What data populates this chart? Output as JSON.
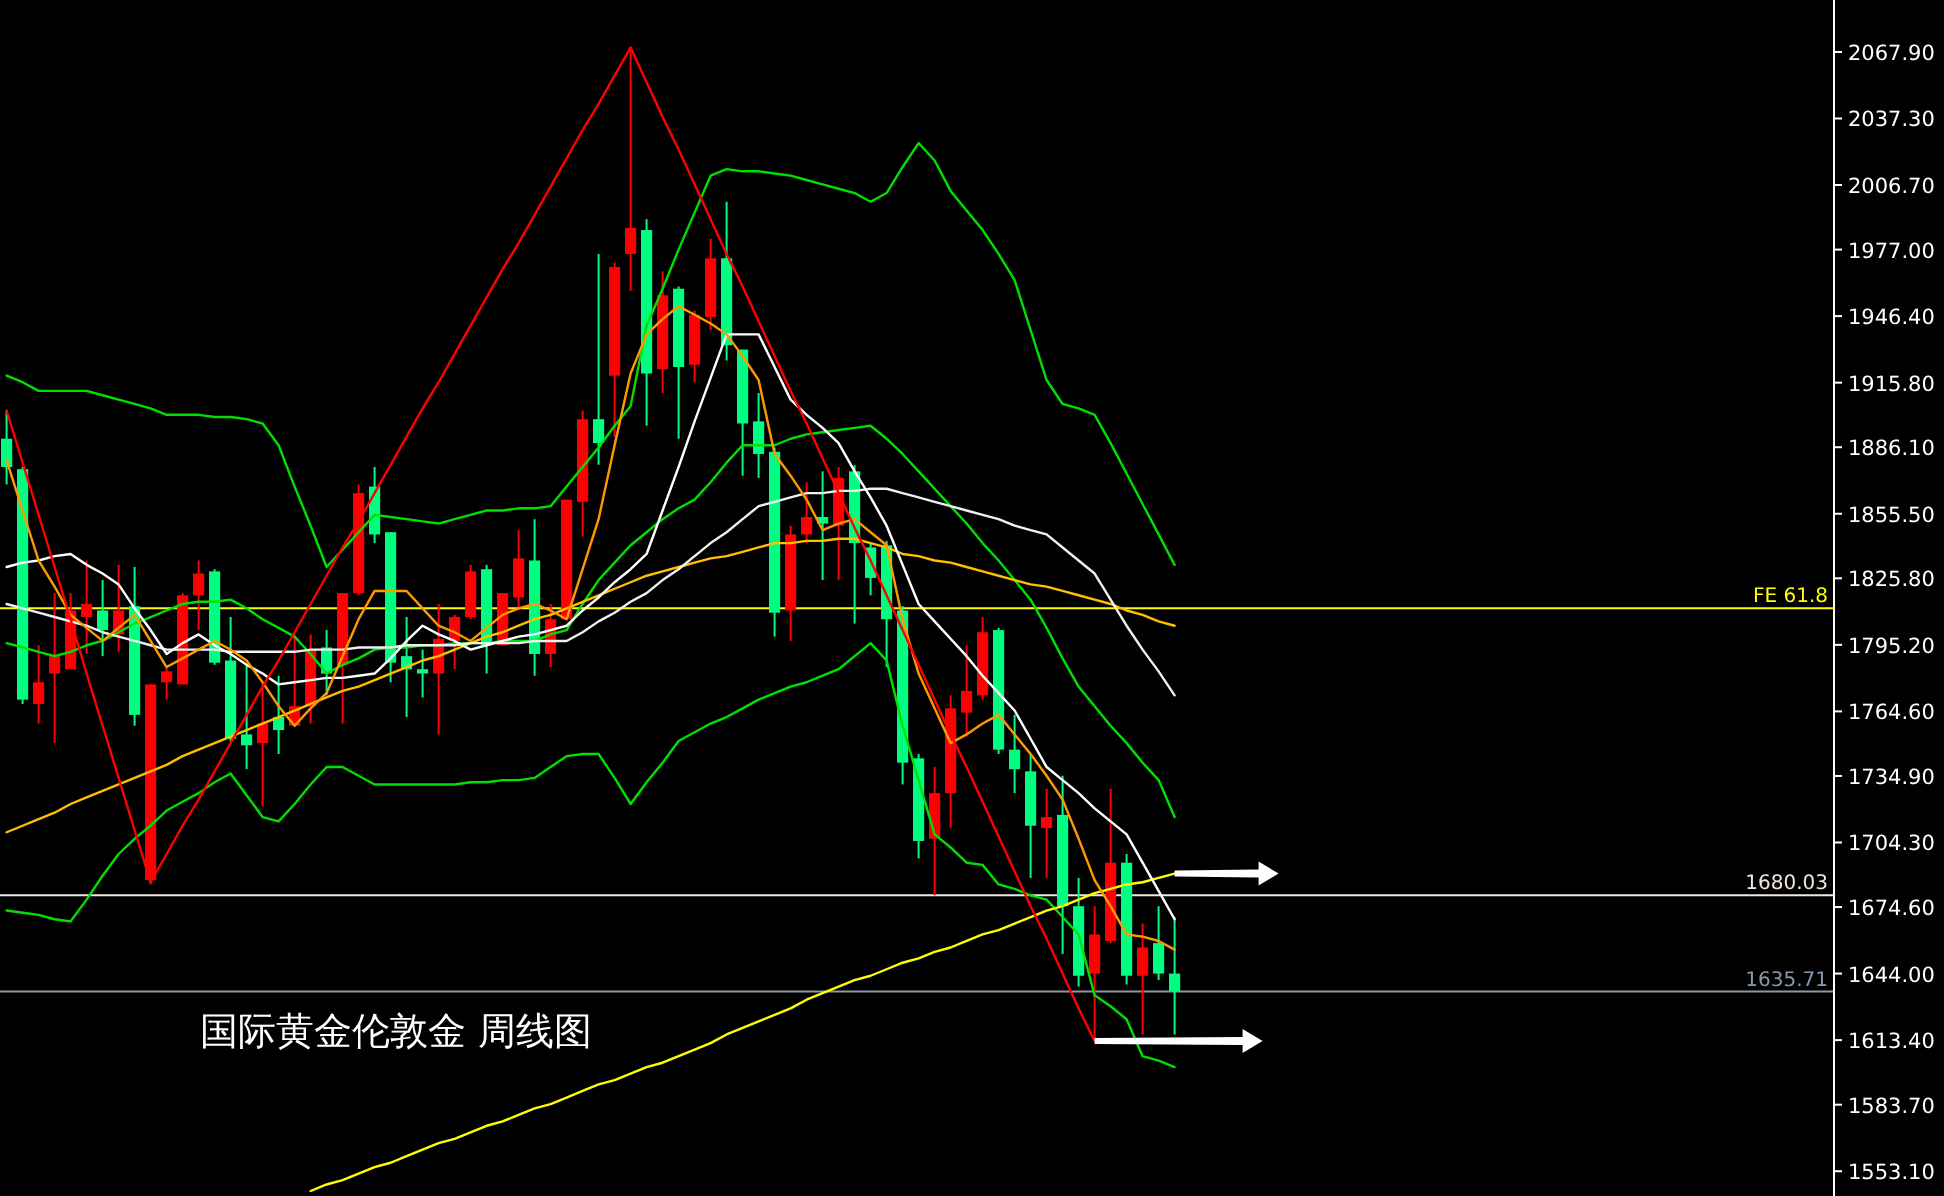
{
  "chart_data": {
    "type": "candlestick",
    "title": "国际黄金伦敦金 周线图",
    "categories": [
      null,
      null,
      null,
      null,
      null,
      null,
      null,
      null,
      null,
      null,
      null,
      null,
      null,
      null,
      null,
      null,
      null,
      null,
      null,
      null,
      null,
      null,
      null,
      null,
      null,
      null,
      null,
      null,
      null,
      null,
      null,
      null,
      null,
      null,
      null,
      null,
      null,
      null,
      null,
      null,
      null,
      null,
      null,
      null,
      null,
      null,
      null,
      null,
      null,
      null,
      null,
      null,
      null,
      null,
      null,
      null,
      null,
      null,
      null,
      null,
      null,
      null,
      null,
      null,
      null,
      null,
      null,
      null,
      null,
      null,
      null,
      null,
      null,
      null
    ],
    "ohlc": [
      [
        1890,
        1903,
        1869,
        1877
      ],
      [
        1876,
        1877,
        1768,
        1770
      ],
      [
        1768,
        1795,
        1759,
        1778
      ],
      [
        1782,
        1819,
        1750,
        1790
      ],
      [
        1784,
        1819,
        1784,
        1811
      ],
      [
        1808,
        1834,
        1791,
        1814
      ],
      [
        1811,
        1825,
        1790,
        1802
      ],
      [
        1800,
        1832,
        1792,
        1811
      ],
      [
        1813,
        1831,
        1758,
        1763
      ],
      [
        1687,
        1777,
        1685,
        1777
      ],
      [
        1778,
        1785,
        1770,
        1783
      ],
      [
        1777,
        1819,
        1777,
        1818
      ],
      [
        1818,
        1834,
        1802,
        1828
      ],
      [
        1829,
        1830,
        1786,
        1787
      ],
      [
        1788,
        1808,
        1751,
        1752
      ],
      [
        1754,
        1786,
        1738,
        1749
      ],
      [
        1750,
        1777,
        1721,
        1759
      ],
      [
        1762,
        1781,
        1745,
        1756
      ],
      [
        1758,
        1800,
        1758,
        1767
      ],
      [
        1767,
        1800,
        1759,
        1793
      ],
      [
        1794,
        1802,
        1772,
        1782
      ],
      [
        1786,
        1819,
        1759,
        1819
      ],
      [
        1819,
        1869,
        1818,
        1865
      ],
      [
        1868,
        1877,
        1842,
        1846
      ],
      [
        1847,
        1847,
        1778,
        1787
      ],
      [
        1790,
        1808,
        1762,
        1784
      ],
      [
        1784,
        1793,
        1771,
        1782
      ],
      [
        1782,
        1814,
        1754,
        1798
      ],
      [
        1797,
        1809,
        1784,
        1808
      ],
      [
        1808,
        1832,
        1807,
        1829
      ],
      [
        1830,
        1832,
        1782,
        1795
      ],
      [
        1795,
        1819,
        1795,
        1819
      ],
      [
        1817,
        1848,
        1812,
        1835
      ],
      [
        1834,
        1853,
        1781,
        1791
      ],
      [
        1791,
        1814,
        1785,
        1807
      ],
      [
        1807,
        1862,
        1807,
        1862
      ],
      [
        1861,
        1903,
        1845,
        1899
      ],
      [
        1899,
        1975,
        1878,
        1888
      ],
      [
        1919,
        1971,
        1891,
        1969
      ],
      [
        1975,
        2070,
        1958,
        1987
      ],
      [
        1986,
        1991,
        1896,
        1920
      ],
      [
        1922,
        1967,
        1911,
        1956
      ],
      [
        1959,
        1960,
        1890,
        1923
      ],
      [
        1924,
        1949,
        1916,
        1947
      ],
      [
        1946,
        1982,
        1940,
        1973
      ],
      [
        1973,
        1999,
        1926,
        1933
      ],
      [
        1931,
        1931,
        1873,
        1897
      ],
      [
        1898,
        1911,
        1872,
        1883
      ],
      [
        1884,
        1886,
        1799,
        1810
      ],
      [
        1811,
        1850,
        1797,
        1846
      ],
      [
        1846,
        1870,
        1842,
        1854
      ],
      [
        1854,
        1875,
        1825,
        1851
      ],
      [
        1850,
        1877,
        1825,
        1872
      ],
      [
        1875,
        1878,
        1805,
        1842
      ],
      [
        1840,
        1842,
        1818,
        1826
      ],
      [
        1841,
        1843,
        1785,
        1807
      ],
      [
        1811,
        1813,
        1731,
        1741
      ],
      [
        1743,
        1745,
        1697,
        1705
      ],
      [
        1706,
        1739,
        1680,
        1727
      ],
      [
        1727,
        1772,
        1711,
        1766
      ],
      [
        1764,
        1795,
        1753,
        1774
      ],
      [
        1772,
        1808,
        1770,
        1801
      ],
      [
        1802,
        1803,
        1745,
        1747
      ],
      [
        1747,
        1763,
        1727,
        1738
      ],
      [
        1737,
        1745,
        1688,
        1712
      ],
      [
        1711,
        1729,
        1688,
        1716
      ],
      [
        1717,
        1735,
        1653,
        1675
      ],
      [
        1675,
        1688,
        1638,
        1643
      ],
      [
        1644,
        1675,
        1613,
        1662
      ],
      [
        1659,
        1729,
        1658,
        1695
      ],
      [
        1695,
        1699,
        1639,
        1643
      ],
      [
        1643,
        1667,
        1616,
        1656
      ],
      [
        1658,
        1675,
        1641,
        1644
      ],
      [
        1644,
        1670,
        1616,
        1636
      ]
    ],
    "colors": [
      "#00ff80",
      "#00ff80",
      "#ff0000",
      "#ff0000",
      "#ff0000",
      "#ff0000",
      "#00ff80",
      "#ff0000",
      "#00ff80",
      "#ff0000",
      "#ff0000",
      "#ff0000",
      "#ff0000",
      "#00ff80",
      "#00ff80",
      "#00ff80",
      "#ff0000",
      "#00ff80",
      "#ff0000",
      "#ff0000",
      "#00ff80",
      "#ff0000",
      "#ff0000",
      "#00ff80",
      "#00ff80",
      "#00ff80",
      "#00ff80",
      "#ff0000",
      "#ff0000",
      "#ff0000",
      "#00ff80",
      "#ff0000",
      "#ff0000",
      "#00ff80",
      "#ff0000",
      "#ff0000",
      "#ff0000",
      "#00ff80",
      "#ff0000",
      "#ff0000",
      "#00ff80",
      "#ff0000",
      "#00ff80",
      "#ff0000",
      "#ff0000",
      "#00ff80",
      "#00ff80",
      "#00ff80",
      "#00ff80",
      "#ff0000",
      "#ff0000",
      "#00ff80",
      "#ff0000",
      "#00ff80",
      "#00ff80",
      "#00ff80",
      "#00ff80",
      "#00ff80",
      "#ff0000",
      "#ff0000",
      "#ff0000",
      "#ff0000",
      "#00ff80",
      "#00ff80",
      "#00ff80",
      "#ff0000",
      "#00ff80",
      "#00ff80",
      "#ff0000",
      "#ff0000",
      "#00ff80",
      "#ff0000",
      "#00ff80",
      "#00ff80"
    ],
    "series": [
      {
        "type": "line",
        "color": "#00e000",
        "values": [
          1919,
          1916,
          1912,
          1912,
          1912,
          1912,
          1910,
          1908,
          1906,
          1904,
          1901,
          1901,
          1901,
          1900,
          1900,
          1899,
          1897,
          1887,
          1868,
          1850,
          1831,
          1839,
          1847,
          1855,
          1854,
          1853,
          1852,
          1851,
          1853,
          1855,
          1857,
          1857,
          1858,
          1858,
          1859,
          1868,
          1877,
          1886,
          1896,
          1905,
          1942,
          1959,
          1977,
          1994,
          2011,
          2014,
          2013,
          2013,
          2012,
          2011,
          2009,
          2007,
          2005,
          2003,
          1999,
          2003,
          2015,
          2026,
          2018,
          2004,
          1995,
          1986,
          1975,
          1963,
          1940,
          1917,
          1906,
          1904,
          1901,
          1888,
          1874,
          1860,
          1846,
          1832
        ]
      },
      {
        "type": "line",
        "color": "#00e000",
        "values": [
          1796,
          1794,
          1792,
          1790,
          1792,
          1795,
          1797,
          1801,
          1805,
          1808,
          1811,
          1814,
          1815,
          1815,
          1816,
          1812,
          1807,
          1803,
          1799,
          1791,
          1782,
          1786,
          1789,
          1793,
          1794,
          1794,
          1795,
          1795,
          1796,
          1796,
          1796,
          1797,
          1797,
          1797,
          1800,
          1802,
          1814,
          1825,
          1833,
          1841,
          1847,
          1853,
          1858,
          1862,
          1870,
          1879,
          1887,
          1887,
          1887,
          1890,
          1892,
          1893,
          1894,
          1895,
          1896,
          1890,
          1883,
          1875,
          1867,
          1859,
          1851,
          1842,
          1834,
          1825,
          1816,
          1803,
          1789,
          1776,
          1767,
          1758,
          1750,
          1741,
          1733,
          1716
        ]
      },
      {
        "type": "line",
        "color": "#00e000",
        "values": [
          1673,
          1672,
          1671,
          1669,
          1668,
          1678,
          1689,
          1699,
          1706,
          1712,
          1719,
          1723,
          1727,
          1732,
          1736,
          1726,
          1716,
          1714,
          1722,
          1731,
          1739,
          1739,
          1735,
          1731,
          1731,
          1731,
          1731,
          1731,
          1731,
          1732,
          1732,
          1733,
          1733,
          1734,
          1739,
          1744,
          1745,
          1745,
          1734,
          1722,
          1732,
          1741,
          1751,
          1755,
          1759,
          1762,
          1766,
          1770,
          1773,
          1776,
          1778,
          1781,
          1784,
          1790,
          1796,
          1788,
          1758,
          1733,
          1708,
          1702,
          1695,
          1694,
          1685,
          1683,
          1680,
          1678,
          1670,
          1662,
          1634,
          1629,
          1623,
          1606,
          1604,
          1601
        ]
      },
      {
        "type": "line",
        "color": "#ffff00",
        "values": [
          null,
          null,
          null,
          null,
          null,
          null,
          null,
          null,
          null,
          null,
          null,
          null,
          null,
          null,
          null,
          null,
          null,
          null,
          null,
          1544,
          1547,
          1549,
          1552,
          1555,
          1557,
          1560,
          1563,
          1566,
          1568,
          1571,
          1574,
          1576,
          1579,
          1582,
          1584,
          1587,
          1590,
          1593,
          1595,
          1598,
          1601,
          1603,
          1606,
          1609,
          1612,
          1616,
          1619,
          1622,
          1625,
          1628,
          1632,
          1635,
          1638,
          1641,
          1643,
          1646,
          1649,
          1651,
          1654,
          1656,
          1659,
          1662,
          1664,
          1667,
          1670,
          1673,
          1675,
          1678,
          1681,
          1683,
          1685,
          1686,
          1688,
          1690
        ]
      },
      {
        "type": "line",
        "color": "#ffc000",
        "values": [
          1709,
          1712,
          1715,
          1718,
          1722,
          1725,
          1728,
          1731,
          1734,
          1737,
          1740,
          1744,
          1747,
          1750,
          1753,
          1756,
          1759,
          1762,
          1765,
          1768,
          1771,
          1774,
          1776,
          1779,
          1782,
          1785,
          1788,
          1790,
          1793,
          1796,
          1799,
          1801,
          1804,
          1807,
          1809,
          1812,
          1815,
          1818,
          1821,
          1824,
          1827,
          1829,
          1831,
          1833,
          1835,
          1836,
          1838,
          1840,
          1842,
          1842,
          1843,
          1843,
          1844,
          1844,
          1842,
          1840,
          1837,
          1836,
          1834,
          1833,
          1831,
          1829,
          1827,
          1825,
          1823,
          1822,
          1820,
          1818,
          1816,
          1814,
          1811,
          1809,
          1806,
          1804
        ]
      },
      {
        "type": "line",
        "color": "#f0f0f0",
        "values": [
          1814,
          1812,
          1810,
          1808,
          1806,
          1804,
          1801,
          1799,
          1797,
          1795,
          1793,
          1793,
          1793,
          1793,
          1792,
          1792,
          1792,
          1792,
          1792,
          1793,
          1793,
          1793,
          1794,
          1794,
          1794,
          1795,
          1795,
          1795,
          1795,
          1796,
          1796,
          1796,
          1796,
          1797,
          1797,
          1797,
          1801,
          1806,
          1810,
          1815,
          1819,
          1825,
          1830,
          1836,
          1842,
          1847,
          1853,
          1859,
          1861,
          1863,
          1865,
          1865,
          1866,
          1866,
          1867,
          1867,
          1865,
          1863,
          1861,
          1859,
          1857,
          1855,
          1853,
          1850,
          1848,
          1846,
          1840,
          1834,
          1828,
          1816,
          1804,
          1793,
          1783,
          1772
        ]
      },
      {
        "type": "line",
        "color": "#ffffff",
        "values": [
          1831,
          1833,
          1834,
          1836,
          1837,
          1832,
          1828,
          1823,
          1812,
          1802,
          1791,
          1796,
          1800,
          1795,
          1791,
          1786,
          1782,
          1777,
          1778,
          1779,
          1780,
          1780,
          1781,
          1782,
          1789,
          1797,
          1804,
          1800,
          1797,
          1793,
          1795,
          1797,
          1799,
          1800,
          1802,
          1804,
          1811,
          1817,
          1824,
          1830,
          1837,
          1857,
          1877,
          1898,
          1918,
          1938,
          1938,
          1938,
          1923,
          1908,
          1901,
          1895,
          1888,
          1875,
          1863,
          1850,
          1832,
          1814,
          1806,
          1798,
          1790,
          1781,
          1773,
          1765,
          1752,
          1739,
          1733,
          1727,
          1720,
          1714,
          1708,
          1695,
          1682,
          1669
        ]
      },
      {
        "type": "line",
        "color": "#ff9900",
        "values": [
          1880,
          1857,
          1834,
          1822,
          1809,
          1803,
          1797,
          1803,
          1809,
          1797,
          1785,
          1789,
          1793,
          1797,
          1793,
          1788,
          1778,
          1767,
          1758,
          1766,
          1773,
          1790,
          1807,
          1820,
          1820,
          1820,
          1812,
          1804,
          1801,
          1797,
          1803,
          1809,
          1812,
          1814,
          1811,
          1807,
          1830,
          1853,
          1887,
          1920,
          1938,
          1945,
          1951,
          1947,
          1943,
          1938,
          1928,
          1917,
          1883,
          1873,
          1862,
          1848,
          1851,
          1853,
          1847,
          1841,
          1807,
          1782,
          1766,
          1750,
          1754,
          1759,
          1763,
          1754,
          1745,
          1735,
          1724,
          1706,
          1687,
          1675,
          1662,
          1661,
          1659,
          1655
        ]
      },
      {
        "type": "line",
        "color": "#ff0000",
        "values": [
          1903,
          1879,
          1855,
          1831,
          1807,
          1782,
          1758,
          1734,
          1710,
          1686,
          1699,
          1712,
          1724,
          1737,
          1750,
          1763,
          1776,
          1788,
          1801,
          1814,
          1827,
          1840,
          1852,
          1865,
          1878,
          1891,
          1904,
          1916,
          1929,
          1942,
          1955,
          1968,
          1980,
          1993,
          2006,
          2019,
          2032,
          2044,
          2057,
          2070,
          2054,
          2038,
          2023,
          2007,
          1991,
          1975,
          1960,
          1944,
          1928,
          1912,
          1897,
          1881,
          1865,
          1849,
          1834,
          1818,
          1802,
          1786,
          1770,
          1754,
          1739,
          1723,
          1707,
          1691,
          1675,
          1660,
          1644,
          1628,
          1613,
          null,
          null,
          null,
          null,
          null
        ]
      }
    ],
    "ylim": [
      1541.7,
      2091.8
    ],
    "yticks": [
      {
        "value": 2067.9,
        "label": "2067.90"
      },
      {
        "value": 2037.3,
        "label": "2037.30"
      },
      {
        "value": 2006.7,
        "label": "2006.70"
      },
      {
        "value": 1977.0,
        "label": "1977.00"
      },
      {
        "value": 1946.4,
        "label": "1946.40"
      },
      {
        "value": 1915.8,
        "label": "1915.80"
      },
      {
        "value": 1886.1,
        "label": "1886.10"
      },
      {
        "value": 1855.5,
        "label": "1855.50"
      },
      {
        "value": 1825.8,
        "label": "1825.80"
      },
      {
        "value": 1795.2,
        "label": "1795.20"
      },
      {
        "value": 1764.6,
        "label": "1764.60"
      },
      {
        "value": 1734.9,
        "label": "1734.90"
      },
      {
        "value": 1704.3,
        "label": "1704.30"
      },
      {
        "value": 1674.6,
        "label": "1674.60"
      },
      {
        "value": 1644.0,
        "label": "1644.00"
      },
      {
        "value": 1613.4,
        "label": "1613.40"
      },
      {
        "value": 1583.7,
        "label": "1583.70"
      },
      {
        "value": 1553.1,
        "label": "1553.10"
      }
    ],
    "ref_lines": [
      {
        "axis": "y",
        "value": 1812,
        "label": "FE 61.8",
        "color": "#ffff00"
      },
      {
        "axis": "y",
        "value": 1680.03,
        "label": "1680.03",
        "color": "#f0e8e0"
      },
      {
        "axis": "y",
        "value": 1635.71,
        "label": "1635.71",
        "color": "#8899aa"
      }
    ],
    "tick_labels": "y",
    "grid": false
  }
}
